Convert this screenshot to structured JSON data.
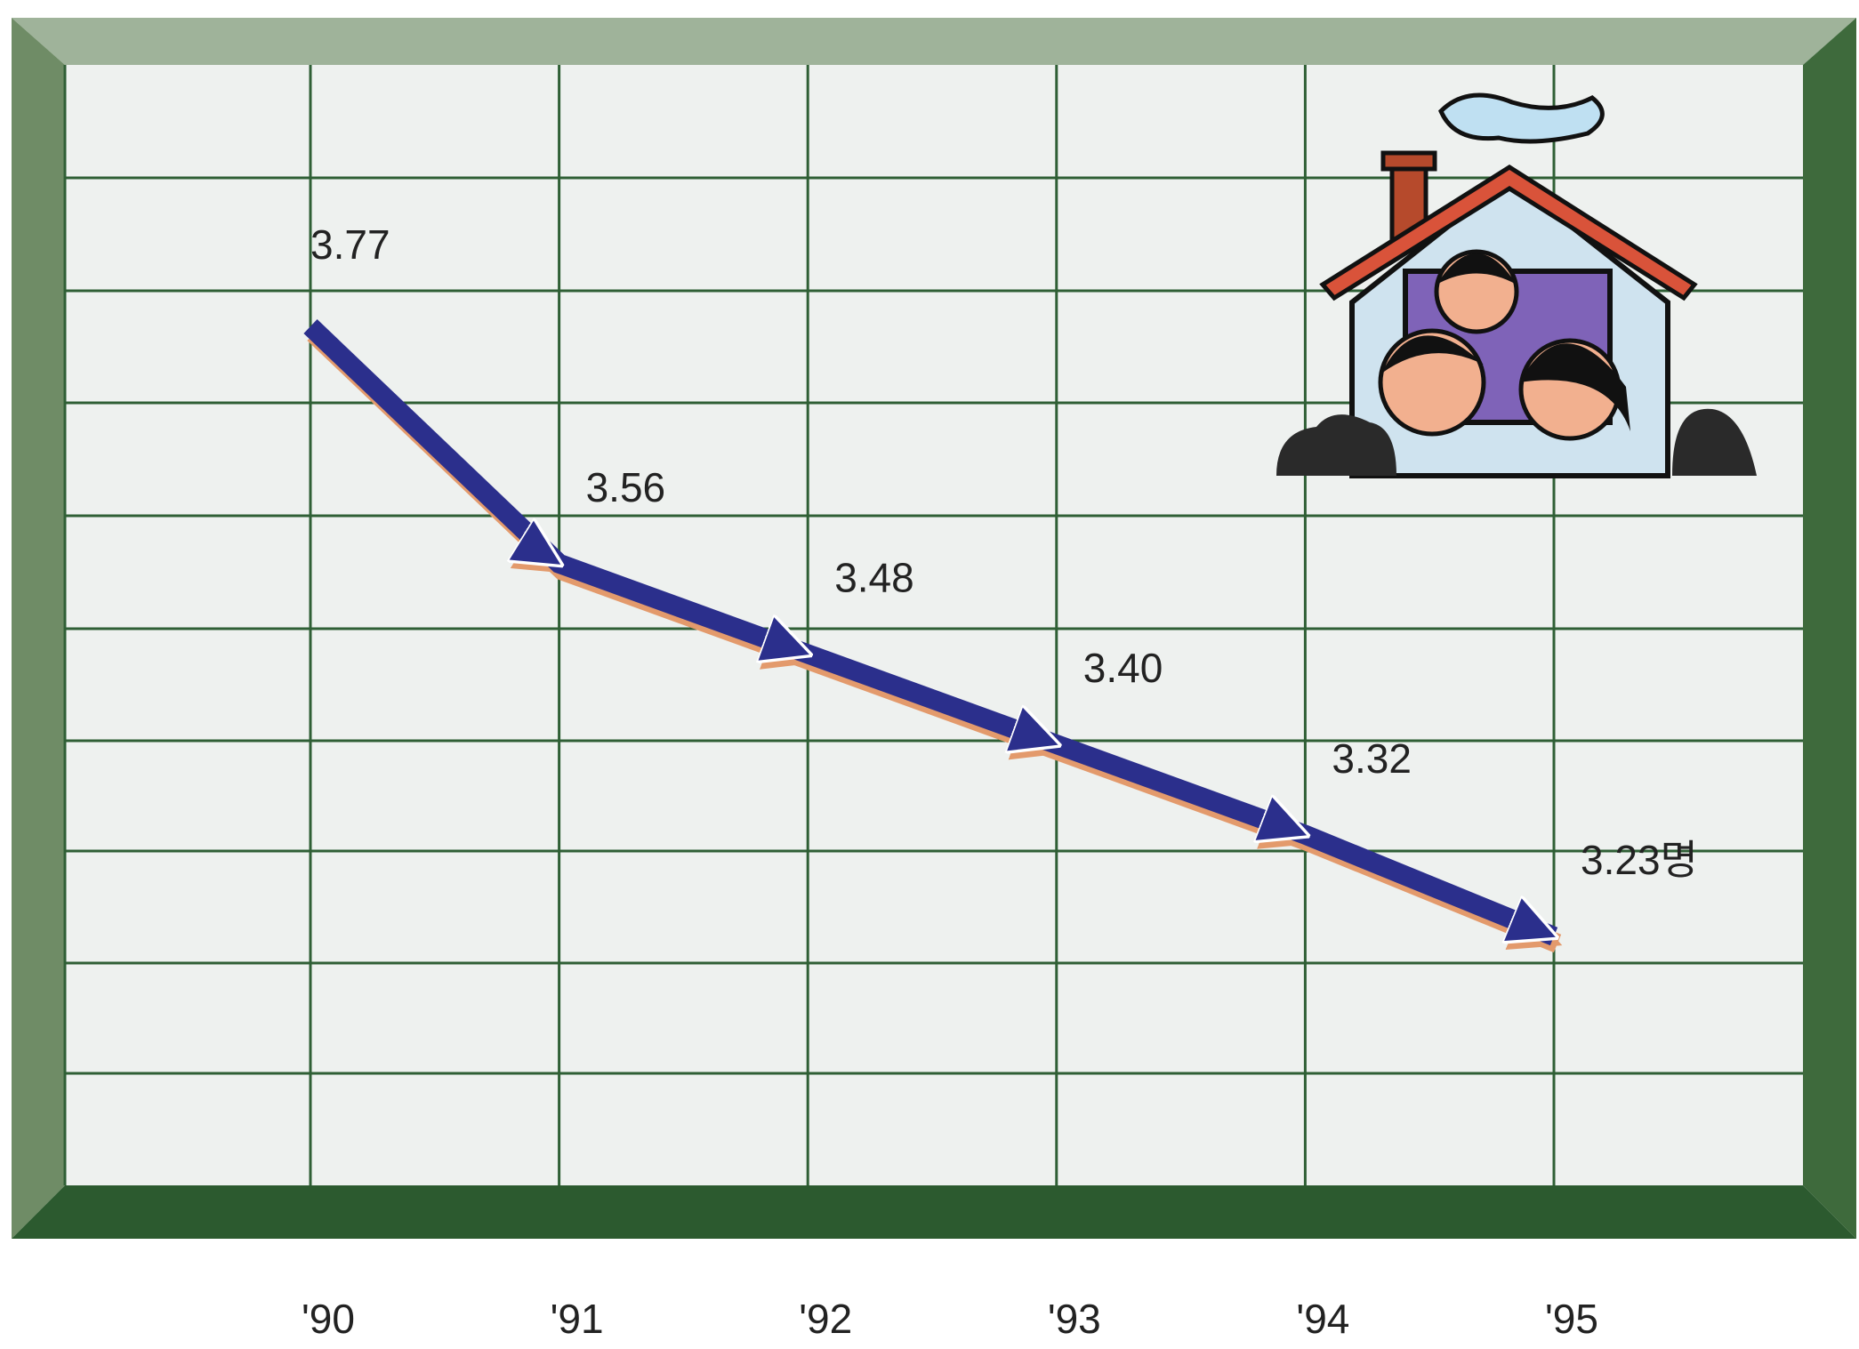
{
  "chart_data": {
    "type": "line",
    "categories": [
      "'90",
      "'91",
      "'92",
      "'93",
      "'94",
      "'95"
    ],
    "values": [
      3.77,
      3.56,
      3.48,
      3.4,
      3.32,
      3.23
    ],
    "value_labels": [
      "3.77",
      "3.56",
      "3.48",
      "3.40",
      "3.32",
      "3.23명"
    ],
    "color": "#2b2f8c",
    "grid": true
  }
}
